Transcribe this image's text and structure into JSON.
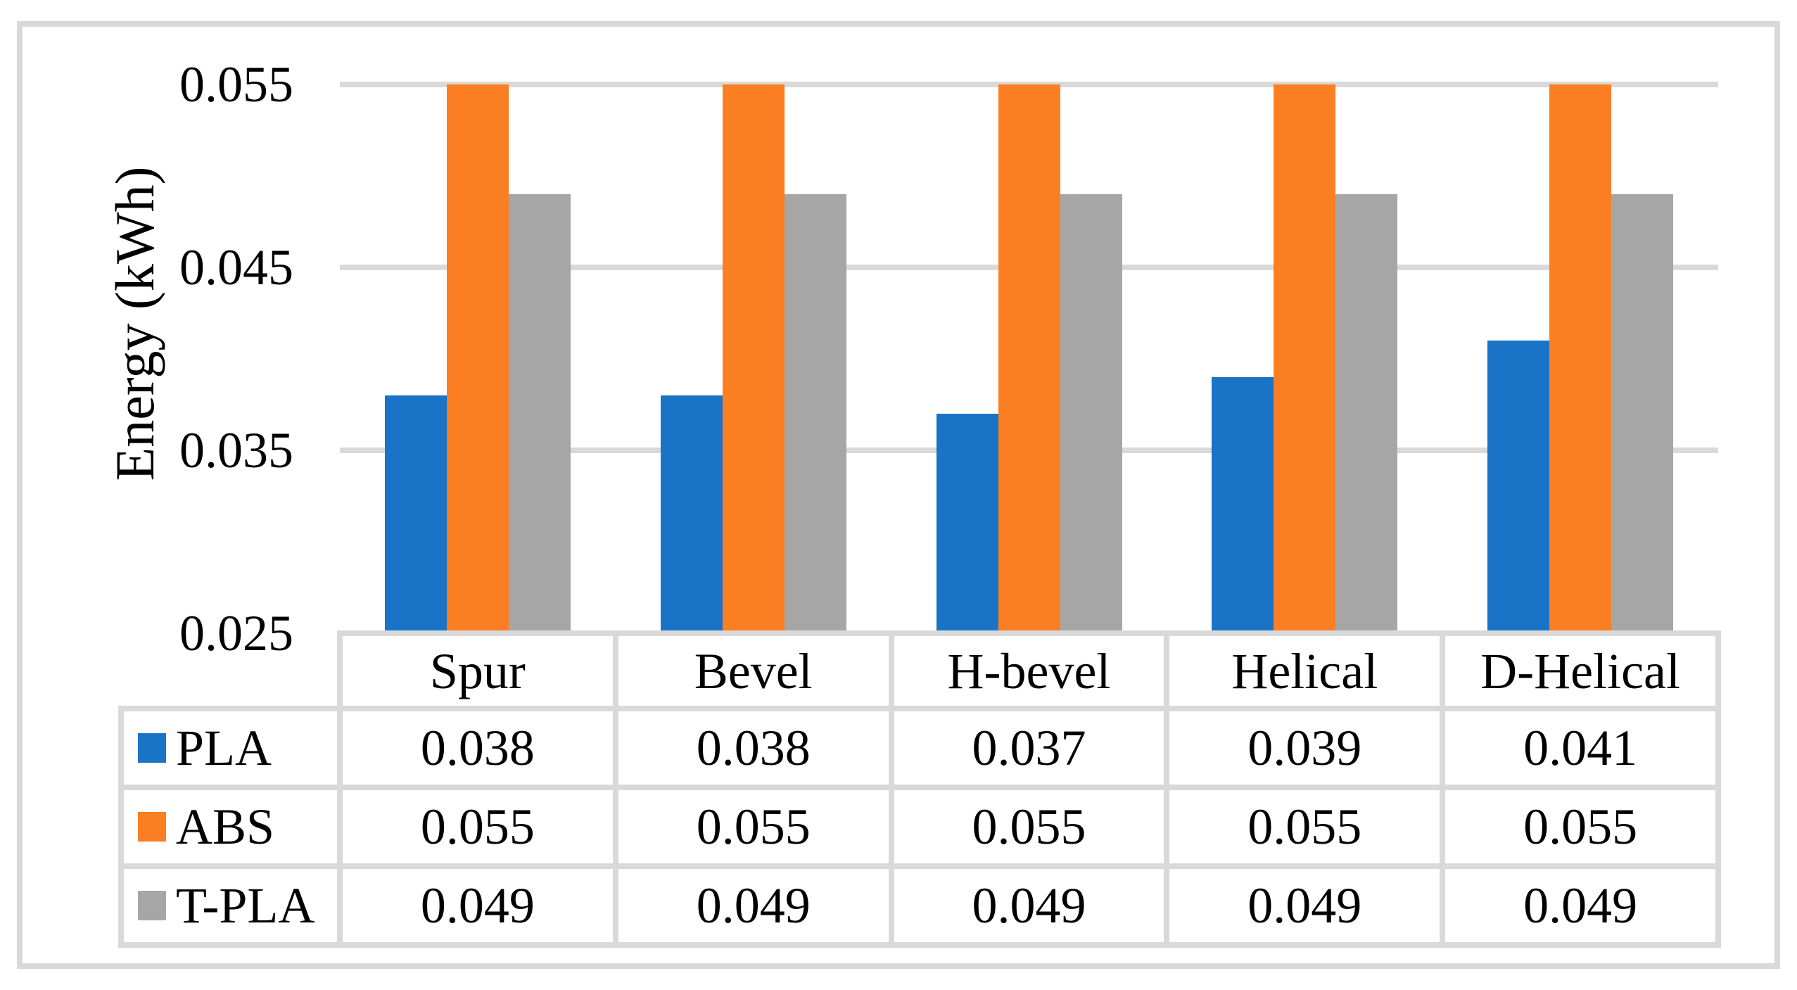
{
  "figure": {
    "background": "#FFFFFF",
    "frame_color": "#D9D9D9"
  },
  "chart_data": {
    "type": "bar",
    "title": "",
    "xlabel": "",
    "ylabel": "Energy (kWh)",
    "categories": [
      "Spur",
      "Bevel",
      "H-bevel",
      "Helical",
      "D-Helical"
    ],
    "series": [
      {
        "name": "PLA",
        "color": "#1974C8",
        "values": [
          0.038,
          0.038,
          0.037,
          0.039,
          0.041
        ]
      },
      {
        "name": "ABS",
        "color": "#FC7E23",
        "values": [
          0.055,
          0.055,
          0.055,
          0.055,
          0.055
        ]
      },
      {
        "name": "T-PLA",
        "color": "#A6A6A6",
        "values": [
          0.049,
          0.049,
          0.049,
          0.049,
          0.049
        ]
      }
    ],
    "y_axis": {
      "min": 0.025,
      "max": 0.055,
      "ticks": [
        0.055,
        0.045,
        0.035,
        0.025
      ],
      "tick_labels": [
        "0.055",
        "0.045",
        "0.035",
        "0.025"
      ]
    },
    "ylim": [
      0.025,
      0.055
    ],
    "gridlines": {
      "show": true,
      "color": "#D9D9D9",
      "at": [
        0.055,
        0.045,
        0.035
      ]
    },
    "data_table": {
      "show": true,
      "border_color": "#D9D9D9",
      "value_format_decimals": 3
    },
    "legend_position": "data-table-left-column"
  }
}
